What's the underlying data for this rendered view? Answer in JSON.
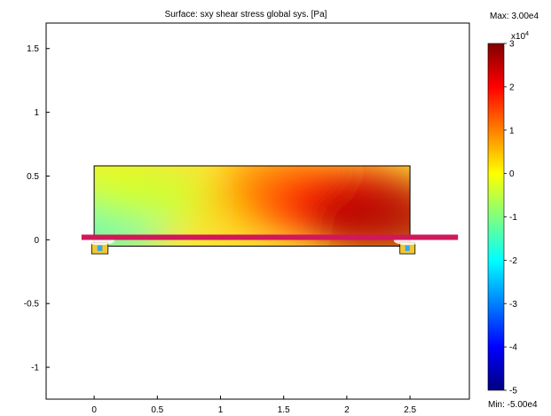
{
  "chart_data": {
    "type": "heatmap",
    "title": "Surface: sxy shear stress global sys. [Pa]",
    "xlabel": "",
    "ylabel": "",
    "xlim": [
      -0.38,
      2.97
    ],
    "ylim": [
      -1.25,
      1.7
    ],
    "x_ticks": [
      "0",
      "0.5",
      "1",
      "1.5",
      "2",
      "2.5"
    ],
    "x_tick_values": [
      0,
      0.5,
      1,
      1.5,
      2,
      2.5
    ],
    "y_ticks": [
      "1.5",
      "1",
      "0.5",
      "0",
      "-0.5",
      "-1"
    ],
    "y_tick_values": [
      1.5,
      1,
      0.5,
      0,
      -0.5,
      -1
    ],
    "grid": false,
    "domain": {
      "x": [
        0,
        2.5
      ],
      "y": [
        -0.05,
        0.58
      ]
    },
    "supports": [
      {
        "x": [
          -0.02,
          0.11
        ],
        "y": [
          -0.11,
          -0.02
        ]
      },
      {
        "x": [
          2.42,
          2.54
        ],
        "y": [
          -0.11,
          -0.02
        ]
      }
    ],
    "overlay_line": {
      "y": 0.02,
      "x": [
        -0.1,
        2.88
      ],
      "color": "#d0185a"
    },
    "field_points": [
      {
        "x": 0.1,
        "y": 0.15,
        "value": -1.8
      },
      {
        "x": 0.25,
        "y": 0.3,
        "value": -1.0
      },
      {
        "x": 0.4,
        "y": 0.35,
        "value": -0.6
      },
      {
        "x": 0.7,
        "y": 0.3,
        "value": -0.3
      },
      {
        "x": 1.25,
        "y": 0.3,
        "value": 0.5
      },
      {
        "x": 1.5,
        "y": 0.45,
        "value": 1.0
      },
      {
        "x": 1.7,
        "y": 0.28,
        "value": 1.4
      },
      {
        "x": 2.0,
        "y": 0.3,
        "value": 1.9
      },
      {
        "x": 2.3,
        "y": 0.17,
        "value": 2.7
      },
      {
        "x": 0.08,
        "y": 0.5,
        "value": -0.2
      }
    ],
    "colorbar": {
      "exponent_label": "x10",
      "exponent_power": "4",
      "ticks": [
        "3",
        "2",
        "1",
        "0",
        "-1",
        "-2",
        "-3",
        "-4",
        "-5"
      ],
      "tick_values": [
        3,
        2,
        1,
        0,
        -1,
        -2,
        -3,
        -4,
        -5
      ],
      "range": [
        -5,
        3
      ],
      "max_label": "Max: 3.00e4",
      "min_label": "Min: -5.00e4",
      "colormap": "jet"
    }
  }
}
